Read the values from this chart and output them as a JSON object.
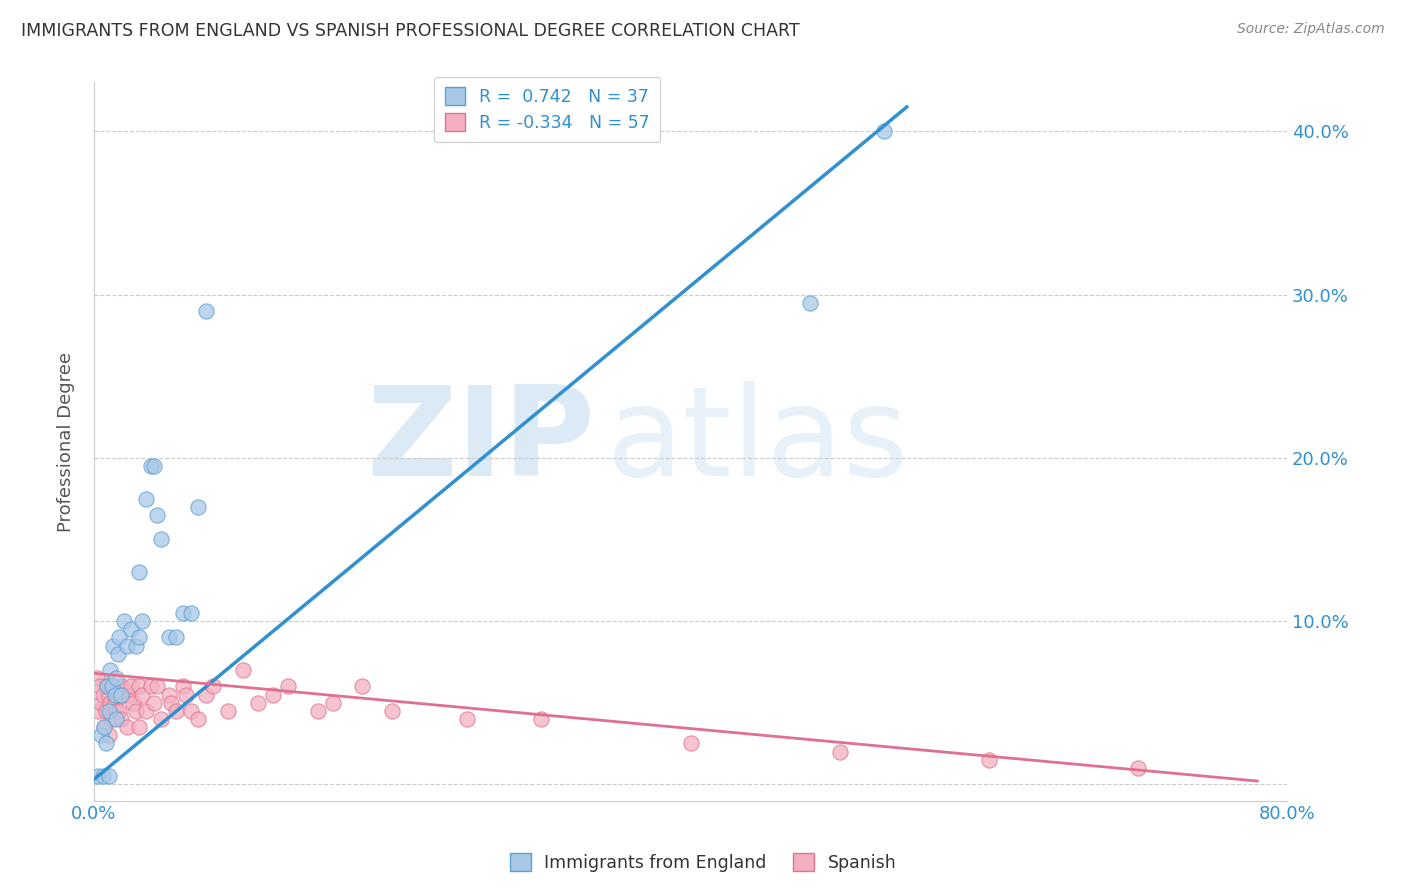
{
  "title": "IMMIGRANTS FROM ENGLAND VS SPANISH PROFESSIONAL DEGREE CORRELATION CHART",
  "source_text": "Source: ZipAtlas.com",
  "ylabel": "Professional Degree",
  "xlim": [
    0.0,
    0.8
  ],
  "ylim": [
    -0.01,
    0.43
  ],
  "ytick_positions": [
    0.0,
    0.1,
    0.2,
    0.3,
    0.4
  ],
  "ytick_labels": [
    "",
    "10.0%",
    "20.0%",
    "30.0%",
    "40.0%"
  ],
  "legend_r1": "R =  0.742   N = 37",
  "legend_r2": "R = -0.334   N = 57",
  "color_blue_fill": "#a8c8e8",
  "color_blue_edge": "#5aa0d0",
  "color_pink_fill": "#f4b0c0",
  "color_pink_edge": "#e07090",
  "color_blue_line": "#3090d0",
  "color_pink_line": "#e07090",
  "color_blue_text": "#3090d0",
  "watermark_zip": "ZIP",
  "watermark_atlas": "atlas",
  "blue_scatter_x": [
    0.003,
    0.005,
    0.006,
    0.007,
    0.008,
    0.009,
    0.01,
    0.01,
    0.011,
    0.012,
    0.013,
    0.014,
    0.015,
    0.015,
    0.016,
    0.017,
    0.018,
    0.02,
    0.022,
    0.025,
    0.028,
    0.03,
    0.03,
    0.032,
    0.035,
    0.038,
    0.04,
    0.042,
    0.045,
    0.05,
    0.055,
    0.06,
    0.065,
    0.07,
    0.075,
    0.48,
    0.53
  ],
  "blue_scatter_y": [
    0.005,
    0.03,
    0.005,
    0.035,
    0.025,
    0.06,
    0.045,
    0.005,
    0.07,
    0.06,
    0.085,
    0.055,
    0.065,
    0.04,
    0.08,
    0.09,
    0.055,
    0.1,
    0.085,
    0.095,
    0.085,
    0.09,
    0.13,
    0.1,
    0.175,
    0.195,
    0.195,
    0.165,
    0.15,
    0.09,
    0.09,
    0.105,
    0.105,
    0.17,
    0.29,
    0.295,
    0.4
  ],
  "pink_scatter_x": [
    0.002,
    0.003,
    0.004,
    0.005,
    0.006,
    0.007,
    0.008,
    0.009,
    0.01,
    0.01,
    0.011,
    0.012,
    0.013,
    0.014,
    0.015,
    0.016,
    0.017,
    0.018,
    0.019,
    0.02,
    0.022,
    0.024,
    0.025,
    0.026,
    0.028,
    0.03,
    0.03,
    0.032,
    0.035,
    0.038,
    0.04,
    0.042,
    0.045,
    0.05,
    0.052,
    0.055,
    0.06,
    0.062,
    0.065,
    0.07,
    0.075,
    0.08,
    0.09,
    0.1,
    0.11,
    0.12,
    0.13,
    0.15,
    0.16,
    0.18,
    0.2,
    0.25,
    0.3,
    0.4,
    0.5,
    0.6,
    0.7
  ],
  "pink_scatter_y": [
    0.065,
    0.045,
    0.06,
    0.05,
    0.055,
    0.035,
    0.045,
    0.06,
    0.055,
    0.03,
    0.05,
    0.04,
    0.06,
    0.05,
    0.045,
    0.055,
    0.045,
    0.04,
    0.06,
    0.055,
    0.035,
    0.055,
    0.06,
    0.05,
    0.045,
    0.06,
    0.035,
    0.055,
    0.045,
    0.06,
    0.05,
    0.06,
    0.04,
    0.055,
    0.05,
    0.045,
    0.06,
    0.055,
    0.045,
    0.04,
    0.055,
    0.06,
    0.045,
    0.07,
    0.05,
    0.055,
    0.06,
    0.045,
    0.05,
    0.06,
    0.045,
    0.04,
    0.04,
    0.025,
    0.02,
    0.015,
    0.01
  ],
  "blue_trend_x": [
    0.0,
    0.545
  ],
  "blue_trend_y": [
    0.003,
    0.415
  ],
  "pink_trend_x": [
    0.0,
    0.78
  ],
  "pink_trend_y": [
    0.068,
    0.002
  ]
}
